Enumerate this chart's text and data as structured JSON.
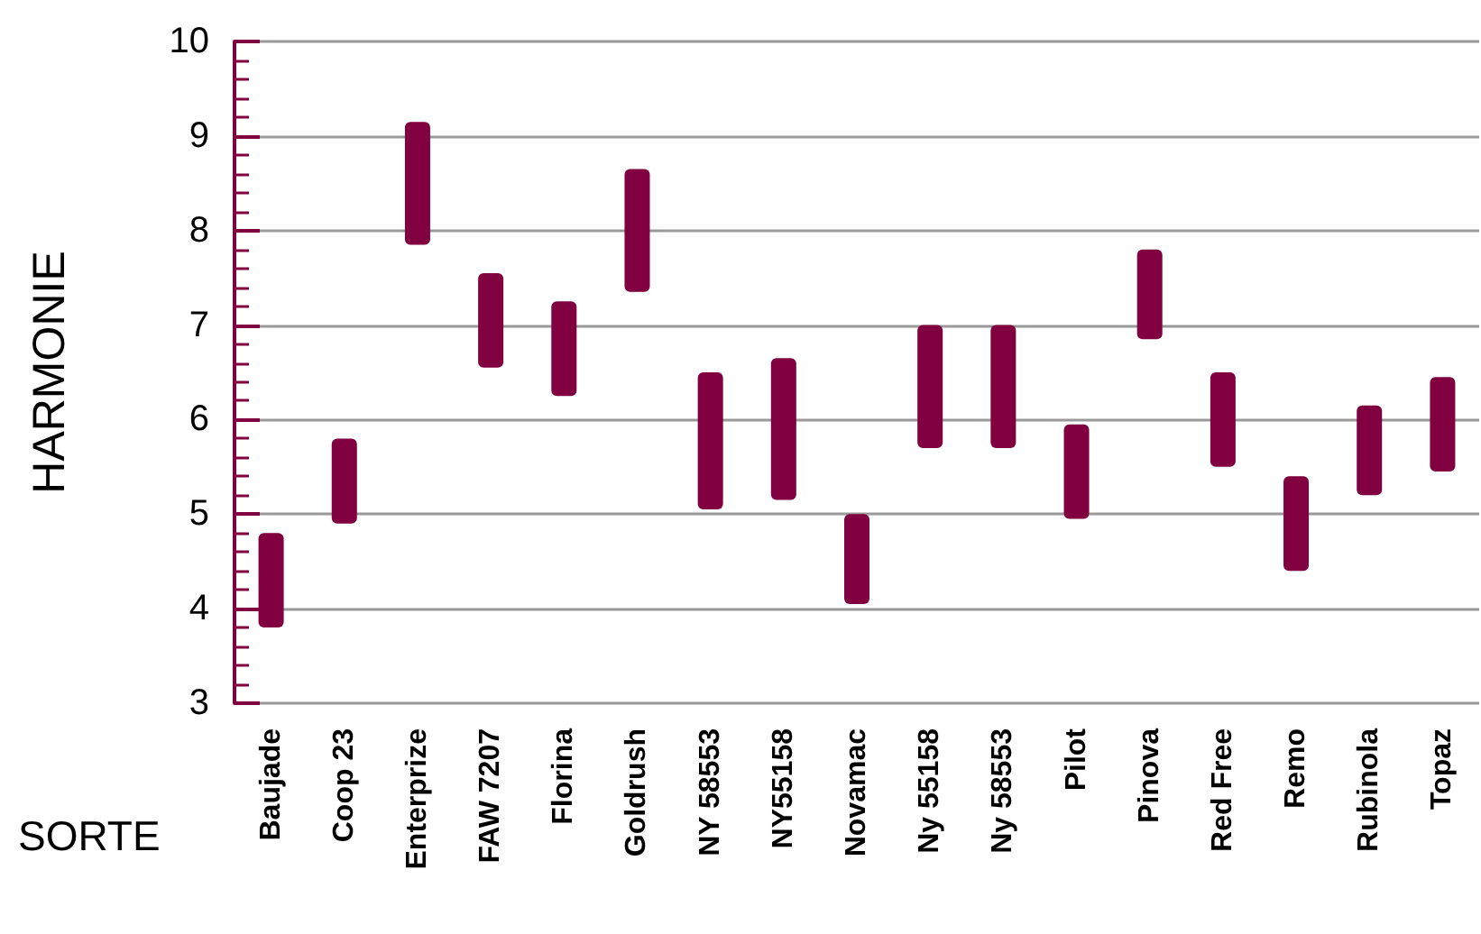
{
  "chart_data": {
    "type": "bar",
    "xlabel": "SORTE",
    "ylabel": "HARMONIE",
    "color": "#800040",
    "categories": [
      "Baujade",
      "Coop 23",
      "Enterprize",
      "FAW 7207",
      "Florina",
      "Goldrush",
      "NY 58553",
      "NY55158",
      "Novamac",
      "Ny 55158",
      "Ny 58553",
      "Pilot",
      "Pinova",
      "Red Free",
      "Remo",
      "Rubinola",
      "Topaz"
    ],
    "base": [
      3.8,
      4.9,
      7.85,
      6.55,
      6.25,
      7.35,
      5.05,
      5.15,
      4.05,
      5.7,
      5.7,
      4.95,
      6.85,
      5.5,
      4.4,
      5.2,
      5.45
    ],
    "values": [
      1.0,
      0.9,
      1.3,
      1.0,
      1.0,
      1.3,
      1.45,
      1.5,
      0.95,
      1.3,
      1.3,
      1.0,
      0.95,
      1.0,
      1.0,
      0.95,
      1.0
    ],
    "ylim": [
      3,
      10
    ],
    "yticks": [
      3,
      4,
      5,
      6,
      7,
      8,
      9,
      10
    ],
    "grid": "y"
  }
}
